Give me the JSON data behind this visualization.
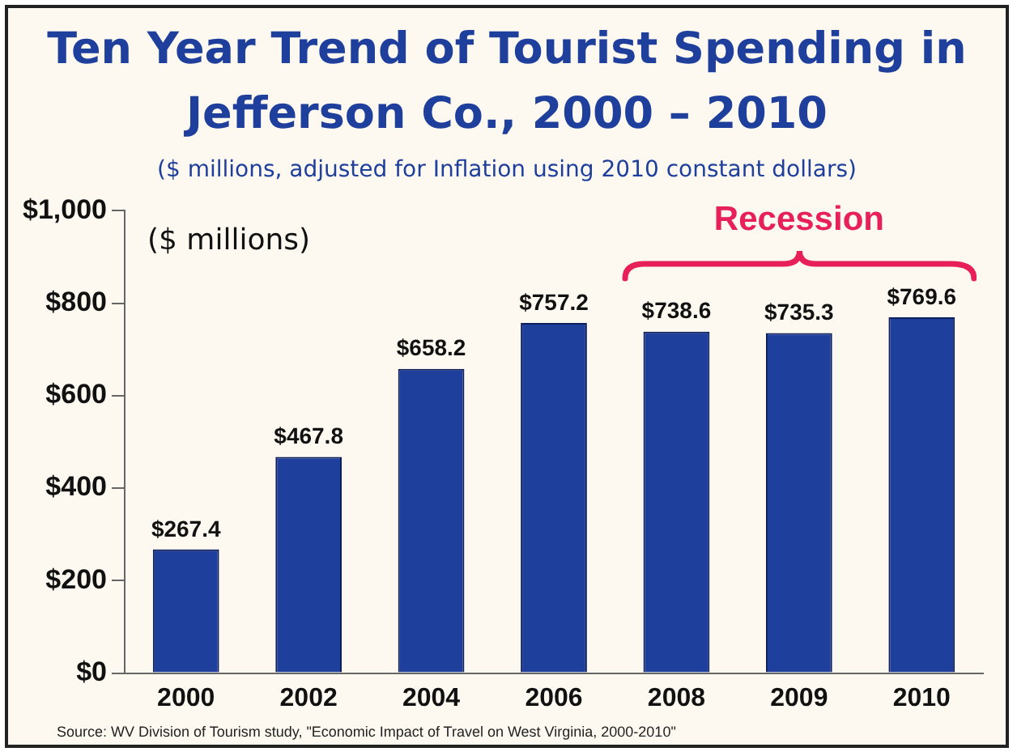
{
  "chart_data": {
    "type": "bar",
    "title": "Ten Year Trend of  Tourist Spending in Jefferson Co., 2000 – 2010",
    "subtitle": "($ millions, adjusted for Inflation using 2010 constant dollars)",
    "categories": [
      "2000",
      "2002",
      "2004",
      "2006",
      "2008",
      "2009",
      "2010"
    ],
    "values": [
      267.4,
      467.8,
      658.2,
      757.2,
      738.6,
      735.3,
      769.6
    ],
    "value_labels": [
      "$267.4",
      "$467.8",
      "$658.2",
      "$757.2",
      "$738.6",
      "$735.3",
      "$769.6"
    ],
    "color": "#1f3f9c",
    "ylim": [
      0,
      1000
    ],
    "yticks": [
      {
        "value": 0,
        "label": "$0"
      },
      {
        "value": 200,
        "label": "$200"
      },
      {
        "value": 400,
        "label": "$400"
      },
      {
        "value": 600,
        "label": "$600"
      },
      {
        "value": 800,
        "label": "$800"
      },
      {
        "value": 1000,
        "label": "$1,000"
      }
    ],
    "grid": false,
    "legend": false,
    "annotations": [
      "($ millions)",
      "Recession",
      "Source: WV Division of Tourism study, \"Economic Impact of Travel on West Virginia, 2000-2010\""
    ]
  }
}
